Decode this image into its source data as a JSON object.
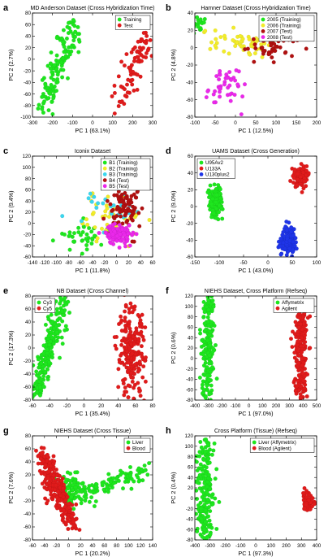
{
  "colors": {
    "green": "#1ee61e",
    "red": "#e01b1b",
    "yellow": "#f2ec2a",
    "magenta": "#ea28ea",
    "cyan": "#3bd6ee",
    "blue": "#1f35e8",
    "darkred": "#b01010"
  },
  "chart_data": [
    {
      "id": "a",
      "letter": "a",
      "type": "scatter",
      "title": "MD Anderson Dataset (Cross Hybridization Time)",
      "xlabel": "PC 1 (63.1%)",
      "ylabel": "PC 2 (2.7%)",
      "xlim": [
        -300,
        300
      ],
      "ylim": [
        -100,
        80
      ],
      "xticks": [
        -300,
        -200,
        -100,
        0,
        100,
        200,
        300
      ],
      "yticks": [
        -100,
        -80,
        -60,
        -40,
        -20,
        0,
        20,
        40,
        60,
        80
      ],
      "legend": "top-right",
      "series": [
        {
          "name": "Training",
          "color": "green",
          "clusters": [
            {
              "type": "line",
              "n": 130,
              "x1": -260,
              "y1": -90,
              "x2": -90,
              "y2": 58,
              "spread": 7
            }
          ]
        },
        {
          "name": "Test",
          "color": "red",
          "clusters": [
            {
              "type": "line",
              "n": 80,
              "x1": 145,
              "y1": -70,
              "x2": 280,
              "y2": 35,
              "spread": 7
            }
          ]
        }
      ]
    },
    {
      "id": "b",
      "letter": "b",
      "type": "scatter",
      "title": "Hamner Dataset (Cross Hybridization Time)",
      "xlabel": "PC 1 (12.5%)",
      "ylabel": "PC 2 (4.8%)",
      "xlim": [
        -100,
        200
      ],
      "ylim": [
        -80,
        40
      ],
      "xticks": [
        -100,
        -50,
        0,
        50,
        100,
        150,
        200
      ],
      "yticks": [
        -80,
        -60,
        -40,
        -20,
        0,
        20,
        40
      ],
      "legend": "top-right",
      "series": [
        {
          "name": "2005 (Training)",
          "color": "green",
          "clusters": [
            {
              "type": "blob",
              "n": 18,
              "cx": -90,
              "cy": 27,
              "sx": 10,
              "sy": 6
            }
          ]
        },
        {
          "name": "2006 (Training)",
          "color": "yellow",
          "clusters": [
            {
              "type": "blob",
              "n": 60,
              "cx": 15,
              "cy": 5,
              "sx": 35,
              "sy": 8
            }
          ]
        },
        {
          "name": "2007 (Test)",
          "color": "darkred",
          "clusters": [
            {
              "type": "blob",
              "n": 45,
              "cx": 90,
              "cy": 0,
              "sx": 40,
              "sy": 8
            }
          ]
        },
        {
          "name": "2008 (Test)",
          "color": "magenta",
          "clusters": [
            {
              "type": "blob",
              "n": 45,
              "cx": -30,
              "cy": -45,
              "sx": 25,
              "sy": 12
            }
          ]
        }
      ]
    },
    {
      "id": "c",
      "letter": "c",
      "type": "scatter",
      "title": "Iconix Dataset",
      "xlabel": "PC 1 (11.8%)",
      "ylabel": "PC 2 (9.4%)",
      "xlim": [
        -140,
        60
      ],
      "ylim": [
        -60,
        120
      ],
      "xticks": [
        -140,
        -120,
        -100,
        -80,
        -60,
        -40,
        -20,
        0,
        20,
        40,
        60
      ],
      "yticks": [
        -60,
        -40,
        -20,
        0,
        20,
        40,
        60,
        80,
        100,
        120
      ],
      "legend": "top-right",
      "series": [
        {
          "name": "B1 (Training)",
          "color": "green",
          "clusters": [
            {
              "type": "blob",
              "n": 40,
              "cx": -60,
              "cy": -20,
              "sx": 18,
              "sy": 12
            }
          ]
        },
        {
          "name": "B2 (Training)",
          "color": "yellow",
          "clusters": [
            {
              "type": "blob",
              "n": 45,
              "cx": -5,
              "cy": 15,
              "sx": 25,
              "sy": 25
            }
          ]
        },
        {
          "name": "B3 (Training)",
          "color": "cyan",
          "clusters": [
            {
              "type": "blob",
              "n": 25,
              "cx": -10,
              "cy": 30,
              "sx": 20,
              "sy": 20
            }
          ]
        },
        {
          "name": "B4 (Test)",
          "color": "darkred",
          "clusters": [
            {
              "type": "blob",
              "n": 100,
              "cx": 12,
              "cy": 30,
              "sx": 15,
              "sy": 30
            }
          ]
        },
        {
          "name": "B5 (Test)",
          "color": "magenta",
          "clusters": [
            {
              "type": "blob",
              "n": 120,
              "cx": 5,
              "cy": -20,
              "sx": 12,
              "sy": 8
            }
          ]
        }
      ]
    },
    {
      "id": "d",
      "letter": "d",
      "type": "scatter",
      "title": "UAMS Dataset (Cross Generation)",
      "xlabel": "PC 1 (43.0%)",
      "ylabel": "PC 2 (9.0%)",
      "xlim": [
        -150,
        100
      ],
      "ylim": [
        -60,
        60
      ],
      "xticks": [
        -150,
        -100,
        -50,
        0,
        50,
        100
      ],
      "yticks": [
        -60,
        -40,
        -20,
        0,
        20,
        40,
        60
      ],
      "legend": "top-left",
      "series": [
        {
          "name": "U95Av2",
          "color": "green",
          "clusters": [
            {
              "type": "blob",
              "n": 140,
              "cx": -108,
              "cy": 5,
              "sx": 7,
              "sy": 9
            }
          ]
        },
        {
          "name": "U133A",
          "color": "red",
          "clusters": [
            {
              "type": "blob",
              "n": 120,
              "cx": 68,
              "cy": 35,
              "sx": 7,
              "sy": 6
            }
          ]
        },
        {
          "name": "U130plus2",
          "color": "blue",
          "clusters": [
            {
              "type": "blob",
              "n": 150,
              "cx": 42,
              "cy": -40,
              "sx": 7,
              "sy": 8
            }
          ]
        }
      ]
    },
    {
      "id": "e",
      "letter": "e",
      "type": "scatter",
      "title": "NB Dataset (Cross Channel)",
      "xlabel": "PC 1 (35.4%)",
      "ylabel": "PC 2 (17.3%)",
      "xlim": [
        -60,
        80
      ],
      "ylim": [
        -80,
        80
      ],
      "xticks": [
        -60,
        -40,
        -20,
        0,
        20,
        40,
        60,
        80
      ],
      "yticks": [
        -80,
        -60,
        -40,
        -20,
        0,
        20,
        40,
        60,
        80
      ],
      "legend": "top-left",
      "series": [
        {
          "name": "Cy3",
          "color": "green",
          "clusters": [
            {
              "type": "line",
              "n": 220,
              "x1": -57,
              "y1": -72,
              "x2": -25,
              "y2": 70,
              "spread": 5
            }
          ]
        },
        {
          "name": "Cy5",
          "color": "red",
          "clusters": [
            {
              "type": "blob",
              "n": 220,
              "cx": 55,
              "cy": -10,
              "sx": 8,
              "sy": 35
            }
          ]
        }
      ]
    },
    {
      "id": "f",
      "letter": "f",
      "type": "scatter",
      "title": "NIEHS Dataset, Cross Platform (Refseq)",
      "xlabel": "PC 1 (97.0%)",
      "ylabel": "PC 2 (0.6%)",
      "xlim": [
        -400,
        500
      ],
      "ylim": [
        -80,
        120
      ],
      "xticks": [
        -400,
        -300,
        -200,
        -100,
        0,
        100,
        200,
        300,
        400,
        500
      ],
      "yticks": [
        -80,
        -60,
        -40,
        -20,
        0,
        20,
        40,
        60,
        80,
        100,
        120
      ],
      "legend": "top-right",
      "series": [
        {
          "name": "Affymetrix",
          "color": "green",
          "clusters": [
            {
              "type": "line",
              "n": 200,
              "x1": -300,
              "y1": -72,
              "x2": -295,
              "y2": 112,
              "spread": 4
            }
          ]
        },
        {
          "name": "Agilent",
          "color": "red",
          "clusters": [
            {
              "type": "line",
              "n": 200,
              "x1": 380,
              "y1": -72,
              "x2": 385,
              "y2": 85,
              "spread": 4
            }
          ]
        }
      ]
    },
    {
      "id": "g",
      "letter": "g",
      "type": "scatter",
      "title": "NIEHS Dataset (Cross Tissue)",
      "xlabel": "PC 1 (20.2%)",
      "ylabel": "PC 2 (7.6%)",
      "xlim": [
        -60,
        140
      ],
      "ylim": [
        -80,
        80
      ],
      "xticks": [
        -60,
        -40,
        -20,
        0,
        20,
        40,
        60,
        80,
        100,
        120,
        140
      ],
      "yticks": [
        -80,
        -60,
        -40,
        -20,
        0,
        20,
        40,
        60,
        80
      ],
      "legend": "top-right",
      "series": [
        {
          "name": "Liver",
          "color": "green",
          "clusters": [
            {
              "type": "line",
              "n": 120,
              "x1": -5,
              "y1": -20,
              "x2": 130,
              "y2": 30,
              "spread": 6
            },
            {
              "type": "blob",
              "n": 70,
              "cx": 10,
              "cy": 0,
              "sx": 15,
              "sy": 10
            }
          ]
        },
        {
          "name": "Blood",
          "color": "red",
          "clusters": [
            {
              "type": "line",
              "n": 230,
              "x1": -45,
              "y1": 55,
              "x2": 10,
              "y2": -60,
              "spread": 5
            },
            {
              "type": "blob",
              "n": 60,
              "cx": -25,
              "cy": 0,
              "sx": 10,
              "sy": 10
            }
          ]
        }
      ]
    },
    {
      "id": "h",
      "letter": "h",
      "type": "scatter",
      "title": "Cross Platform (Tissue) (Refseq)",
      "xlabel": "PC 1 (97.3%)",
      "ylabel": "PC 2 (0.4%)",
      "xlim": [
        -400,
        400
      ],
      "ylim": [
        -80,
        120
      ],
      "xticks": [
        -400,
        -300,
        -200,
        -100,
        0,
        100,
        200,
        300,
        400
      ],
      "yticks": [
        -80,
        -60,
        -40,
        -20,
        0,
        20,
        40,
        60,
        80,
        100,
        120
      ],
      "legend": "top-right",
      "series": [
        {
          "name": "Liver (Affymetrix)",
          "color": "green",
          "clusters": [
            {
              "type": "line",
              "n": 200,
              "x1": -330,
              "y1": -72,
              "x2": -325,
              "y2": 108,
              "spread": 5
            }
          ]
        },
        {
          "name": "Blood (Agilent)",
          "color": "red",
          "clusters": [
            {
              "type": "line",
              "n": 60,
              "x1": 330,
              "y1": 8,
              "x2": 358,
              "y2": -24,
              "spread": 3
            }
          ]
        }
      ]
    }
  ]
}
